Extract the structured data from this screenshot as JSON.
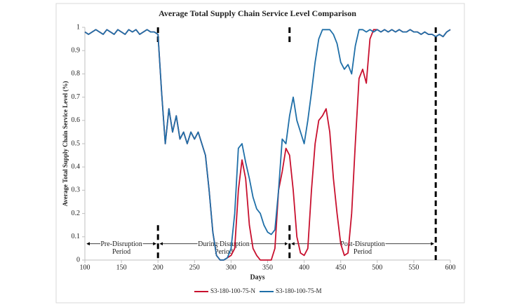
{
  "chart_data": {
    "type": "line",
    "title": "Average Total Supply Chain Service Level Comparison",
    "x_label": "Days",
    "y_label": "Average Total Supply Chain Service Level (%)",
    "x": [
      100,
      105,
      110,
      115,
      120,
      125,
      130,
      135,
      140,
      145,
      150,
      155,
      160,
      165,
      170,
      175,
      180,
      185,
      190,
      195,
      200,
      205,
      210,
      215,
      220,
      225,
      230,
      235,
      240,
      245,
      250,
      255,
      260,
      265,
      270,
      275,
      280,
      285,
      290,
      295,
      300,
      305,
      310,
      315,
      320,
      325,
      330,
      335,
      340,
      345,
      350,
      355,
      360,
      365,
      370,
      375,
      380,
      385,
      390,
      395,
      400,
      405,
      410,
      415,
      420,
      425,
      430,
      435,
      440,
      445,
      450,
      455,
      460,
      465,
      470,
      475,
      480,
      485,
      490,
      495,
      500,
      505,
      510,
      515,
      520,
      525,
      530,
      535,
      540,
      545,
      550,
      555,
      560,
      565,
      570,
      575,
      580,
      585,
      590,
      595,
      600
    ],
    "series": [
      {
        "name": "S3-180-100-75-N",
        "color": "#c8102e",
        "values": [
          0.98,
          0.97,
          0.98,
          0.99,
          0.98,
          0.97,
          0.99,
          0.98,
          0.97,
          0.99,
          0.98,
          0.97,
          0.99,
          0.98,
          0.99,
          0.97,
          0.98,
          0.99,
          0.98,
          0.98,
          0.97,
          0.72,
          0.5,
          0.65,
          0.55,
          0.62,
          0.52,
          0.55,
          0.5,
          0.55,
          0.52,
          0.55,
          0.5,
          0.45,
          0.3,
          0.12,
          0.02,
          0,
          0,
          0.01,
          0.02,
          0.05,
          0.3,
          0.43,
          0.35,
          0.15,
          0.05,
          0.02,
          0,
          0,
          0,
          0,
          0.05,
          0.3,
          0.38,
          0.48,
          0.45,
          0.3,
          0.1,
          0.03,
          0.02,
          0.05,
          0.3,
          0.5,
          0.6,
          0.62,
          0.65,
          0.55,
          0.35,
          0.2,
          0.07,
          0.02,
          0.03,
          0.2,
          0.5,
          0.78,
          0.82,
          0.76,
          0.95,
          0.99,
          0.99,
          0.98,
          0.99,
          0.98,
          0.99,
          0.98,
          0.99,
          0.98,
          0.98,
          0.99,
          0.98,
          0.98,
          0.97,
          0.98,
          0.97,
          0.97,
          0.96,
          0.97,
          0.96,
          0.98,
          0.99
        ]
      },
      {
        "name": "S3-180-100-75-M",
        "color": "#1f6fa8",
        "values": [
          0.98,
          0.97,
          0.98,
          0.99,
          0.98,
          0.97,
          0.99,
          0.98,
          0.97,
          0.99,
          0.98,
          0.97,
          0.99,
          0.98,
          0.99,
          0.97,
          0.98,
          0.99,
          0.98,
          0.98,
          0.97,
          0.72,
          0.5,
          0.65,
          0.55,
          0.62,
          0.52,
          0.55,
          0.5,
          0.55,
          0.52,
          0.55,
          0.5,
          0.45,
          0.3,
          0.12,
          0.02,
          0,
          0,
          0.01,
          0.05,
          0.2,
          0.48,
          0.5,
          0.42,
          0.35,
          0.27,
          0.22,
          0.2,
          0.15,
          0.12,
          0.11,
          0.13,
          0.3,
          0.52,
          0.5,
          0.62,
          0.7,
          0.6,
          0.55,
          0.5,
          0.6,
          0.72,
          0.85,
          0.95,
          0.99,
          0.99,
          0.99,
          0.97,
          0.93,
          0.85,
          0.82,
          0.84,
          0.8,
          0.92,
          0.99,
          0.99,
          0.98,
          0.99,
          0.98,
          0.99,
          0.98,
          0.99,
          0.98,
          0.99,
          0.98,
          0.99,
          0.98,
          0.98,
          0.99,
          0.98,
          0.98,
          0.97,
          0.98,
          0.97,
          0.97,
          0.96,
          0.97,
          0.96,
          0.98,
          0.99
        ]
      }
    ],
    "xlim": [
      100,
      600
    ],
    "ylim": [
      0,
      1
    ],
    "xticks": [
      100,
      150,
      200,
      250,
      300,
      350,
      400,
      450,
      500,
      550,
      600
    ],
    "yticks": [
      0,
      0.1,
      0.2,
      0.3,
      0.4,
      0.5,
      0.6,
      0.7,
      0.8,
      0.9,
      1
    ],
    "phase_boundaries": [
      200,
      380,
      580
    ],
    "phases": [
      {
        "lines": [
          "Pre-Disruption",
          "Period"
        ]
      },
      {
        "lines": [
          "During Disruption",
          "Period"
        ]
      },
      {
        "lines": [
          "Post-Disruption",
          "Period"
        ]
      }
    ],
    "legend": "bottom"
  }
}
